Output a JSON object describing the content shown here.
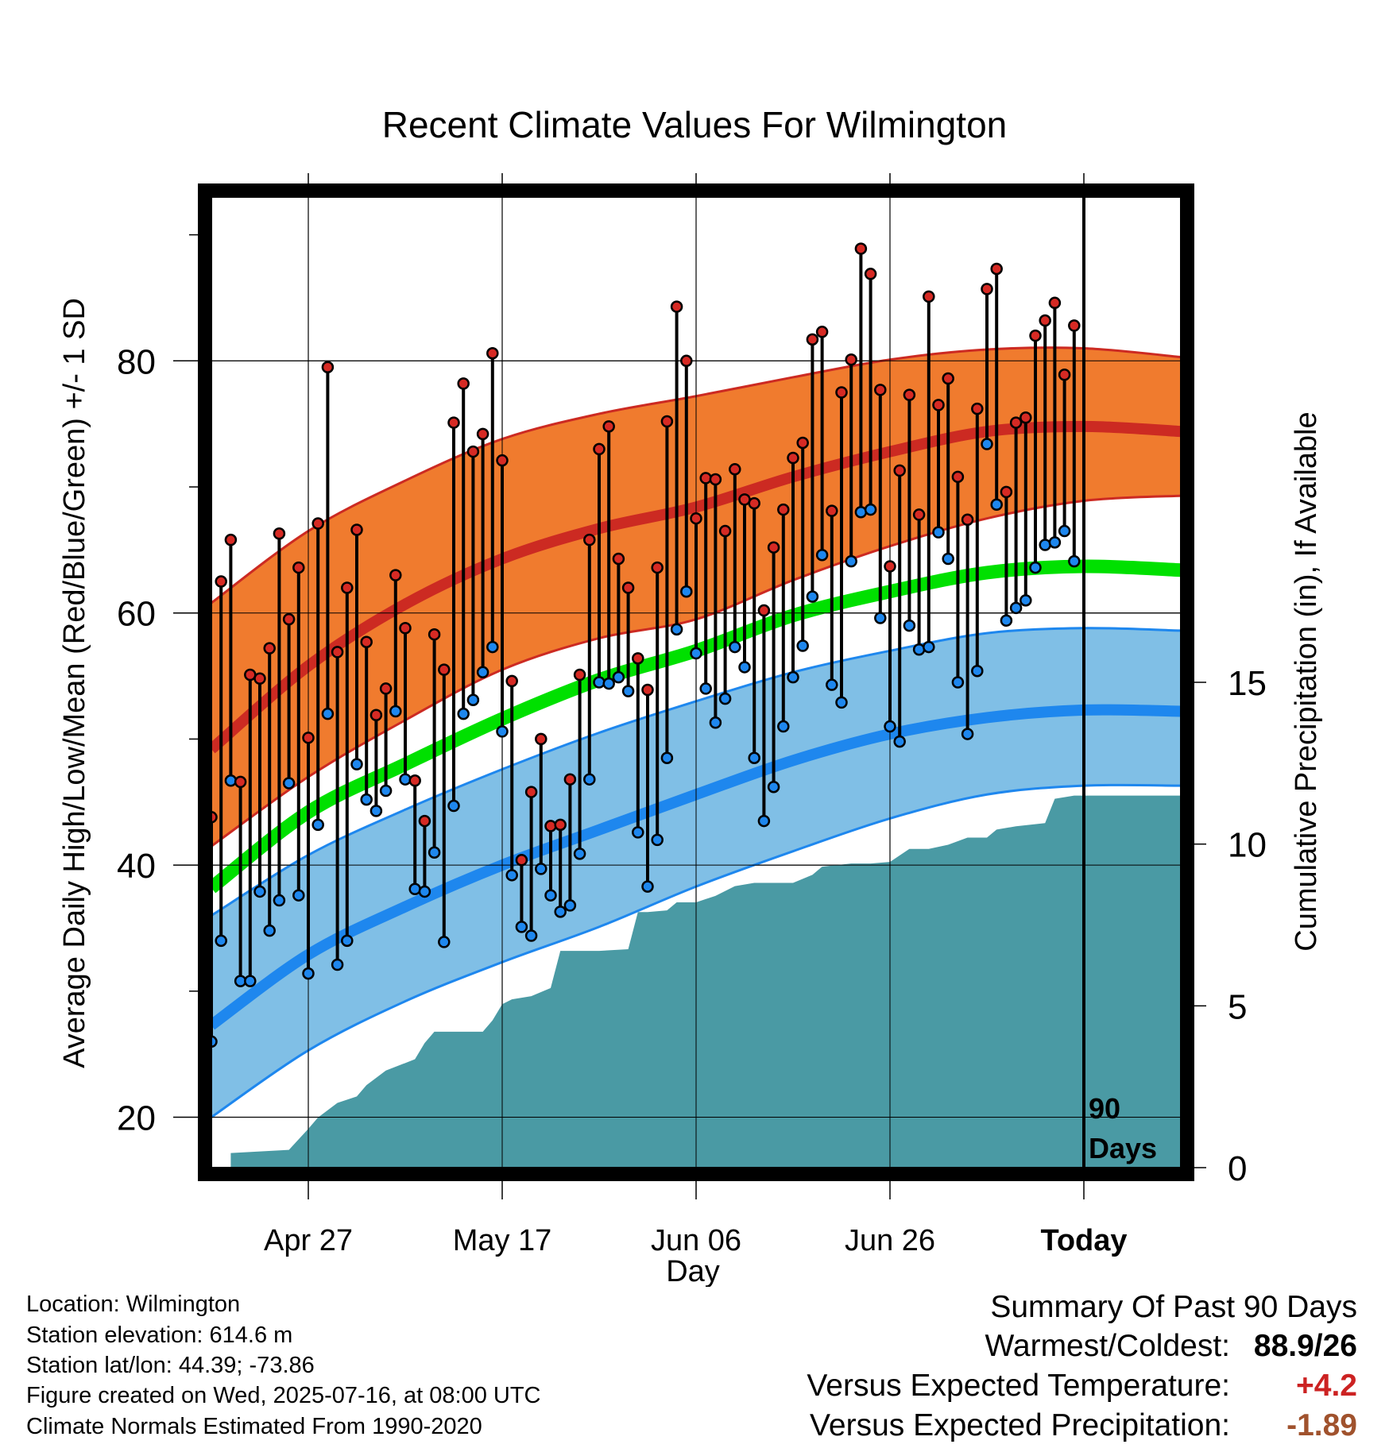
{
  "chart_data": {
    "type": "line",
    "title": "Recent Climate Values For Wilmington",
    "xlabel": "Day",
    "ylabel": "Average Daily High/Low/Mean (Red/Blue/Green) +/- 1 SD",
    "y2label": "Cumulative Precipitation (in), If Available",
    "ylim": [
      16,
      93
    ],
    "y2lim": [
      0,
      30
    ],
    "y_ticks": [
      20,
      40,
      60,
      80
    ],
    "y_tick_labels": [
      "20",
      "40",
      "60",
      "80"
    ],
    "y2_ticks": [
      0,
      5,
      10,
      15
    ],
    "y2_tick_labels": [
      "0",
      "5",
      "10",
      "15"
    ],
    "x_domain": [
      0,
      100
    ],
    "x_ticks": [
      10,
      30,
      50,
      70,
      90
    ],
    "x_tick_labels": [
      "Apr 27",
      "May 17",
      "Jun 06",
      "Jun 26",
      "Today"
    ],
    "today_label": "90\nDays",
    "grid": true,
    "colors": {
      "high_band": "#f07b2e",
      "high_band_edge": "#cc2a22",
      "high_mean": "#cc2a22",
      "low_band": "#80bfe6",
      "low_band_edge": "#1e87ee",
      "low_mean": "#1e87ee",
      "mean": "#00e000",
      "precip": "#4a9aa4",
      "high_dot": "#d62a24",
      "low_dot": "#1e87ee"
    },
    "normals": {
      "x": [
        0,
        10,
        20,
        30,
        40,
        50,
        60,
        70,
        80,
        90,
        100
      ],
      "high_upper": [
        60.8,
        66.5,
        70.5,
        73.8,
        75.8,
        77.2,
        78.7,
        80.1,
        80.9,
        81.0,
        80.3
      ],
      "high_mean": [
        49.2,
        55.8,
        60.7,
        64.3,
        66.7,
        68.4,
        70.8,
        72.8,
        74.4,
        74.8,
        74.4
      ],
      "high_lower": [
        41.5,
        47.0,
        51.5,
        55.5,
        58.0,
        59.5,
        62.6,
        65.3,
        67.5,
        68.9,
        69.3
      ],
      "mean": [
        38.2,
        44.2,
        48.0,
        51.6,
        54.7,
        57.0,
        59.8,
        61.7,
        63.2,
        63.7,
        63.4
      ],
      "low_upper": [
        36.0,
        40.8,
        44.4,
        47.6,
        50.5,
        53.0,
        55.3,
        57.0,
        58.4,
        58.8,
        58.6
      ],
      "low_mean": [
        27.3,
        32.9,
        36.7,
        40.0,
        42.8,
        45.6,
        48.3,
        50.4,
        51.7,
        52.3,
        52.2
      ],
      "low_lower": [
        20.0,
        25.3,
        29.2,
        32.3,
        35.1,
        38.3,
        41.1,
        43.7,
        45.6,
        46.3,
        46.3
      ]
    },
    "daily": {
      "x": [
        0,
        1,
        2,
        3,
        4,
        5,
        6,
        7,
        8,
        9,
        10,
        11,
        12,
        13,
        14,
        15,
        16,
        17,
        18,
        19,
        20,
        21,
        22,
        23,
        24,
        25,
        26,
        27,
        28,
        29,
        30,
        31,
        32,
        33,
        34,
        35,
        36,
        37,
        38,
        39,
        40,
        41,
        42,
        43,
        44,
        45,
        46,
        47,
        48,
        49,
        50,
        51,
        52,
        53,
        54,
        55,
        56,
        57,
        58,
        59,
        60,
        61,
        62,
        63,
        64,
        65,
        66,
        67,
        68,
        69,
        70,
        71,
        72,
        73,
        74,
        75,
        76,
        77,
        78,
        79,
        80,
        81,
        82,
        83,
        84,
        85,
        86,
        87,
        88,
        89
      ],
      "high": [
        43.8,
        62.5,
        65.8,
        46.6,
        55.1,
        54.8,
        57.2,
        66.3,
        59.5,
        63.6,
        50.1,
        67.1,
        79.5,
        56.9,
        62.0,
        66.6,
        57.7,
        51.9,
        54.0,
        63.0,
        58.8,
        46.7,
        43.5,
        58.3,
        55.5,
        75.1,
        78.2,
        72.8,
        74.2,
        80.6,
        72.1,
        54.6,
        40.4,
        45.8,
        50.0,
        43.1,
        43.2,
        46.8,
        55.1,
        65.8,
        73.0,
        74.8,
        64.3,
        62.0,
        56.4,
        53.9,
        63.6,
        75.2,
        84.3,
        80.0,
        67.5,
        70.7,
        70.6,
        66.5,
        71.4,
        69.0,
        68.7,
        60.2,
        65.2,
        68.2,
        72.3,
        73.5,
        81.7,
        82.3,
        68.1,
        77.5,
        80.1,
        88.9,
        86.9,
        77.7,
        63.7,
        71.3,
        77.3,
        67.8,
        85.1,
        76.5,
        78.6,
        70.8,
        67.4,
        76.2,
        85.7,
        87.3,
        69.6,
        75.1,
        75.5,
        82.0,
        83.2,
        84.6,
        78.9,
        82.8
      ],
      "low": [
        26.0,
        34.0,
        46.7,
        30.8,
        30.8,
        37.9,
        34.8,
        37.2,
        46.5,
        37.6,
        31.4,
        43.2,
        52.0,
        32.1,
        34.0,
        48.0,
        45.2,
        44.3,
        45.9,
        52.2,
        46.8,
        38.1,
        37.9,
        41.0,
        33.9,
        44.7,
        52.0,
        53.1,
        55.3,
        57.3,
        50.6,
        39.2,
        35.1,
        34.4,
        39.7,
        37.6,
        36.3,
        36.8,
        40.9,
        46.8,
        54.5,
        54.4,
        54.9,
        53.8,
        42.6,
        38.3,
        42.0,
        48.5,
        58.7,
        61.7,
        56.8,
        54.0,
        51.3,
        53.2,
        57.3,
        55.7,
        48.5,
        43.5,
        46.2,
        51.0,
        54.9,
        57.4,
        61.3,
        64.6,
        54.3,
        52.9,
        64.1,
        68.0,
        68.2,
        59.6,
        51.0,
        49.8,
        59.0,
        57.1,
        57.3,
        66.4,
        64.3,
        54.5,
        50.4,
        55.4,
        73.4,
        68.6,
        59.4,
        60.4,
        61.0,
        63.6,
        65.4,
        65.6,
        66.5,
        64.1
      ]
    },
    "precip": {
      "x": [
        2,
        5,
        8,
        10,
        11,
        13,
        15,
        16,
        18,
        21,
        22,
        23,
        26,
        28,
        29,
        30,
        31,
        33,
        35,
        36,
        38,
        40,
        43,
        44,
        45,
        47,
        48,
        50,
        52,
        54,
        56,
        60,
        62,
        63,
        66,
        68,
        70,
        72,
        74,
        76,
        78,
        80,
        81,
        83,
        86,
        87,
        89,
        91,
        100
      ],
      "cumulative": [
        0.45,
        0.5,
        0.55,
        1.2,
        1.55,
        2.0,
        2.2,
        2.55,
        3.0,
        3.35,
        3.85,
        4.2,
        4.2,
        4.2,
        4.55,
        5.05,
        5.2,
        5.3,
        5.55,
        6.7,
        6.7,
        6.7,
        6.75,
        7.9,
        7.9,
        7.95,
        8.2,
        8.2,
        8.4,
        8.7,
        8.8,
        8.8,
        9.05,
        9.3,
        9.4,
        9.4,
        9.45,
        9.85,
        9.85,
        9.98,
        10.2,
        10.2,
        10.45,
        10.55,
        10.65,
        11.4,
        11.5,
        11.5,
        11.5
      ]
    }
  },
  "footer": {
    "location": "Location: Wilmington",
    "elevation": "Station elevation: 614.6 m",
    "latlon": "Station lat/lon: 44.39; -73.86",
    "created": "Figure created on Wed, 2025-07-16, at 08:00 UTC",
    "normals": "Climate Normals Estimated From 1990-2020"
  },
  "summary": {
    "title": "Summary Of Past 90 Days",
    "warmest_label": "Warmest/Coldest:",
    "warmest_value": "88.9/26",
    "temp_label": "Versus Expected Temperature:",
    "temp_value": "+4.2",
    "temp_color": "#cc2222",
    "precip_label": "Versus Expected Precipitation:",
    "precip_value": "-1.89",
    "precip_color": "#a0522d"
  }
}
